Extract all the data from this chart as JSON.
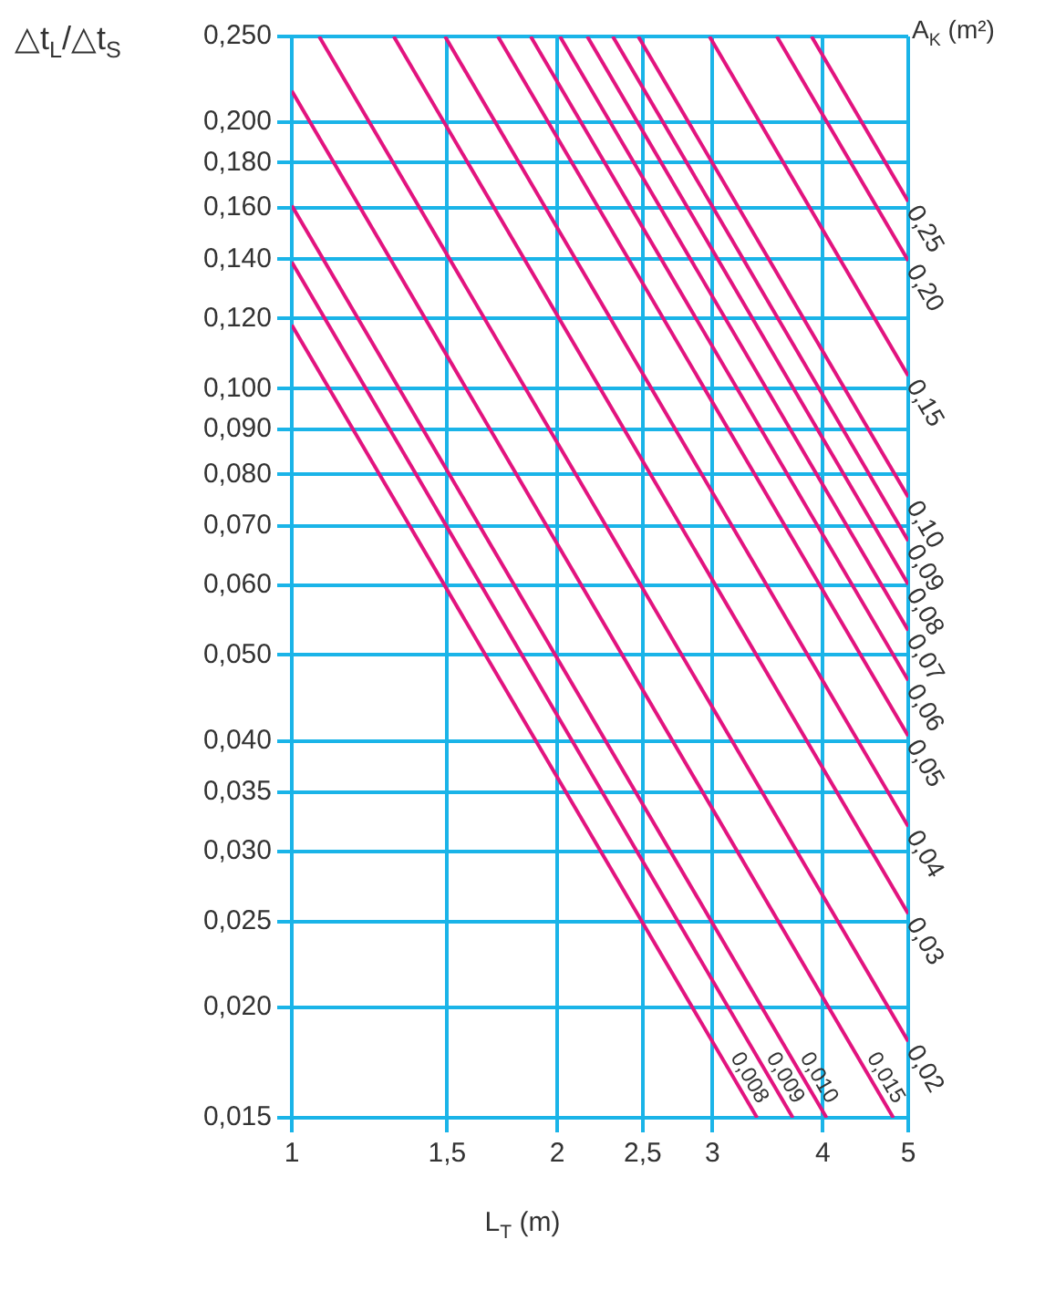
{
  "chart_data": {
    "type": "line",
    "ylabel": "△t$_{L}$/△t$_{S}$",
    "xlabel": "L$_{T}$ (m)",
    "legend_title": "A$_{K}$ (m²)",
    "log": "xy",
    "grid": true,
    "legend": "right",
    "xlim": [
      1,
      5
    ],
    "xticks": [
      1,
      {
        "value": 1.5,
        "label": "1,5"
      },
      2,
      {
        "value": 2.5,
        "label": "2,5"
      },
      3,
      4,
      5
    ],
    "ylim": [
      0.015,
      0.25
    ],
    "yticks": [
      {
        "value": 0.015,
        "label": "0,015"
      },
      {
        "value": 0.02,
        "label": "0,020"
      },
      {
        "value": 0.025,
        "label": "0,025"
      },
      {
        "value": 0.03,
        "label": "0,030"
      },
      {
        "value": 0.035,
        "label": "0,035"
      },
      {
        "value": 0.04,
        "label": "0,040"
      },
      {
        "value": 0.05,
        "label": "0,050"
      },
      {
        "value": 0.06,
        "label": "0,060"
      },
      {
        "value": 0.07,
        "label": "0,070"
      },
      {
        "value": 0.08,
        "label": "0,080"
      },
      {
        "value": 0.09,
        "label": "0,090"
      },
      {
        "value": 0.1,
        "label": "0,100"
      },
      {
        "value": 0.12,
        "label": "0,120"
      },
      {
        "value": 0.14,
        "label": "0,140"
      },
      {
        "value": 0.16,
        "label": "0,160"
      },
      {
        "value": 0.18,
        "label": "0,180"
      },
      {
        "value": 0.2,
        "label": "0,200"
      },
      {
        "value": 0.25,
        "label": "0,250"
      }
    ],
    "series": [
      {
        "name": "0,008",
        "color": "#e2147f",
        "x": [
          1,
          3.37
        ],
        "values": [
          0.118,
          0.015
        ]
      },
      {
        "name": "0,009",
        "color": "#e2147f",
        "x": [
          1,
          3.7
        ],
        "values": [
          0.139,
          0.015
        ]
      },
      {
        "name": "0,010",
        "color": "#e2147f",
        "x": [
          1,
          4.04
        ],
        "values": [
          0.161,
          0.015
        ]
      },
      {
        "name": "0,015",
        "color": "#e2147f",
        "x": [
          1,
          4.81
        ],
        "values": [
          0.217,
          0.015
        ]
      },
      {
        "name": "0,02",
        "color": "#e2147f",
        "x": [
          1.074,
          5
        ],
        "values": [
          0.25,
          0.0183
        ]
      },
      {
        "name": "0,03",
        "color": "#e2147f",
        "x": [
          1.305,
          5
        ],
        "values": [
          0.25,
          0.0255
        ]
      },
      {
        "name": "0,04",
        "color": "#e2147f",
        "x": [
          1.492,
          5
        ],
        "values": [
          0.25,
          0.032
        ]
      },
      {
        "name": "0,05",
        "color": "#e2147f",
        "x": [
          1.713,
          5
        ],
        "values": [
          0.25,
          0.0405
        ]
      },
      {
        "name": "0,06",
        "color": "#e2147f",
        "x": [
          1.866,
          5
        ],
        "values": [
          0.25,
          0.0468
        ]
      },
      {
        "name": "0,07",
        "color": "#e2147f",
        "x": [
          2.014,
          5
        ],
        "values": [
          0.25,
          0.0533
        ]
      },
      {
        "name": "0,08",
        "color": "#e2147f",
        "x": [
          2.163,
          5
        ],
        "values": [
          0.25,
          0.0601
        ]
      },
      {
        "name": "0,09",
        "color": "#e2147f",
        "x": [
          2.312,
          5
        ],
        "values": [
          0.25,
          0.0673
        ]
      },
      {
        "name": "0,10",
        "color": "#e2147f",
        "x": [
          2.471,
          5
        ],
        "values": [
          0.25,
          0.0754
        ]
      },
      {
        "name": "0,15",
        "color": "#e2147f",
        "x": [
          2.976,
          5
        ],
        "values": [
          0.25,
          0.1034
        ]
      },
      {
        "name": "0,20",
        "color": "#e2147f",
        "x": [
          3.548,
          5
        ],
        "values": [
          0.25,
          0.1395
        ]
      },
      {
        "name": "0,25",
        "color": "#e2147f",
        "x": [
          3.885,
          5
        ],
        "values": [
          0.25,
          0.1627
        ]
      }
    ]
  }
}
